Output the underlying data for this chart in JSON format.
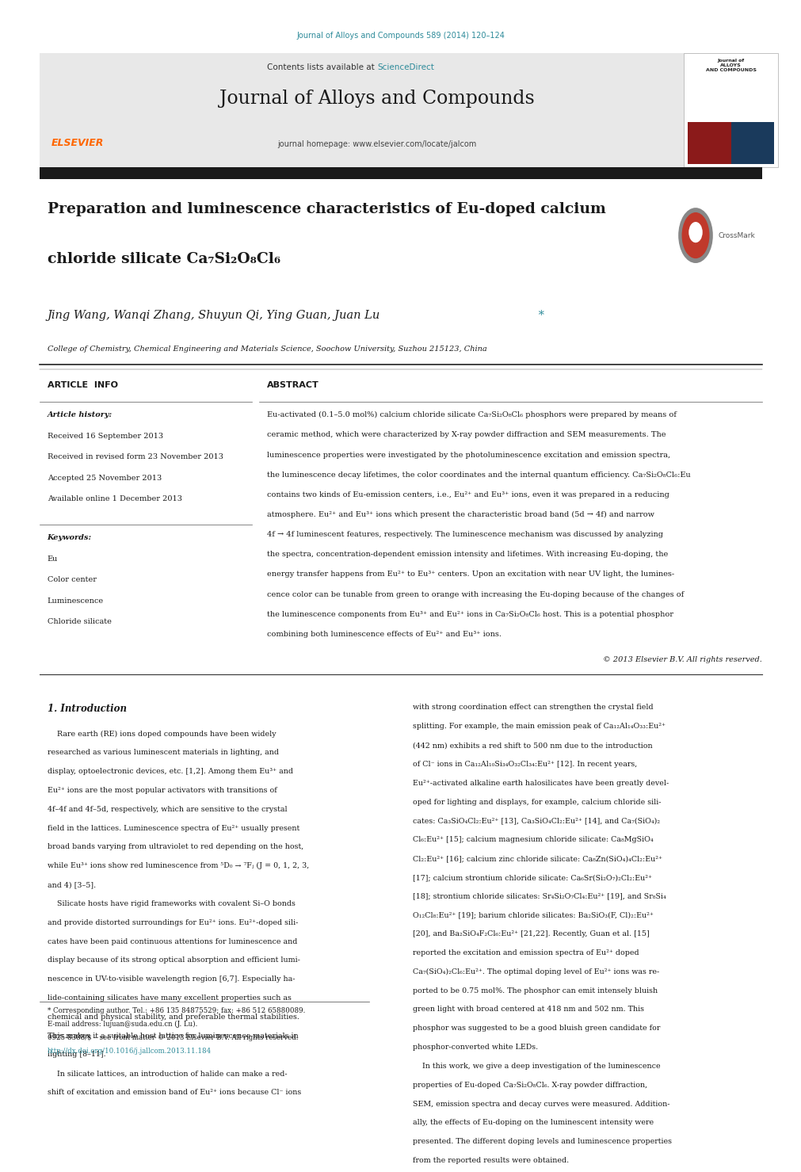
{
  "page_width": 9.92,
  "page_height": 13.23,
  "bg_color": "#ffffff",
  "journal_ref_text": "Journal of Alloys and Compounds 589 (2014) 120–124",
  "journal_ref_color": "#2e8b9a",
  "header_bg": "#e8e8e8",
  "header_text": "Contents lists available at",
  "sciencedirect_text": "ScienceDirect",
  "sciencedirect_color": "#2e8b9a",
  "journal_title": "Journal of Alloys and Compounds",
  "journal_homepage": "journal homepage: www.elsevier.com/locate/jalcom",
  "black_bar_color": "#1a1a1a",
  "paper_title_line1": "Preparation and luminescence characteristics of Eu-doped calcium",
  "paper_title_line2": "chloride silicate Ca₇Si₂O₈Cl₆",
  "authors": "Jing Wang, Wanqi Zhang, Shuyun Qi, Ying Guan, Juan Lu",
  "affiliation": "College of Chemistry, Chemical Engineering and Materials Science, Soochow University, Suzhou 215123, China",
  "article_info_label": "ARTICLE  INFO",
  "abstract_label": "ABSTRACT",
  "article_history_label": "Article history:",
  "received1": "Received 16 September 2013",
  "received2": "Received in revised form 23 November 2013",
  "accepted": "Accepted 25 November 2013",
  "available": "Available online 1 December 2013",
  "keywords_label": "Keywords:",
  "keyword1": "Eu",
  "keyword2": "Color center",
  "keyword3": "Luminescence",
  "keyword4": "Chloride silicate",
  "abstract_text": "Eu-activated (0.1–5.0 mol%) calcium chloride silicate Ca₇Si₂O₈Cl₆ phosphors were prepared by means of ceramic method, which were characterized by X-ray powder diffraction and SEM measurements. The luminescence properties were investigated by the photoluminescence excitation and emission spectra, the luminescence decay lifetimes, the color coordinates and the internal quantum efficiency. Ca₇Si₂O₈Cl₆:Eu contains two kinds of Eu-emission centers, i.e., Eu²⁺ and Eu³⁺ ions, even it was prepared in a reducing atmosphere. Eu²⁺ and Eu³⁺ ions which present the characteristic broad band (5d → 4f) and narrow 4f → 4f luminescent features, respectively. The luminescence mechanism was discussed by analyzing the spectra, concentration-dependent emission intensity and lifetimes. With increasing Eu-doping, the energy transfer happens from Eu²⁺ to Eu³⁺ centers. Upon an excitation with near UV light, the luminescence color can be tunable from green to orange with increasing the Eu-doping because of the changes of the luminescence components from Eu³⁺ and Eu²⁺ ions in Ca₇Si₂O₈Cl₆ host. This is a potential phosphor combining both luminescence effects of Eu²⁺ and Eu³⁺ ions.",
  "copyright": "© 2013 Elsevier B.V. All rights reserved.",
  "intro_heading": "1. Introduction",
  "intro_col1_text": "    Rare earth (RE) ions doped compounds have been widely researched as various luminescent materials in lighting, and display, optoelectronic devices, etc. [1,2]. Among them Eu³⁺ and Eu²⁺ ions are the most popular activators with transitions of 4f–4f and 4f–5d, respectively, which are sensitive to the crystal field in the lattices. Luminescence spectra of Eu²⁺ usually present broad bands varying from ultraviolet to red depending on the host, while Eu³⁺ ions show red luminescence from ⁵D₀ → ⁷Fⱼ (J = 0, 1, 2, 3, and 4) [3–5].\n    Silicate hosts have rigid frameworks with covalent Si–O bonds and provide distorted surroundings for Eu²⁺ ions. Eu²⁺-doped silicates have been paid continuous attentions for luminescence and display because of its strong optical absorption and efficient luminescence in UV-to-visible wavelength region [6,7]. Especially halide-containing silicates have many excellent properties such as chemical and physical stability, and preferable thermal stabilities. This makes it a suitable host lattice for luminescence materials in lighting [8–11].\n    In silicate lattices, an introduction of halide can make a red-shift of excitation and emission band of Eu²⁺ ions because Cl⁻ ions",
  "intro_col2_text": "with strong coordination effect can strengthen the crystal field splitting. For example, the main emission peak of Ca₁₂Al₁₄O₃₃:Eu²⁺ (442 nm) exhibits a red shift to 500 nm due to the introduction of Cl⁻ ions in Ca₁₂Al₁₀Si₃₄O₃₂Cl₃₄:Eu²⁺ [12]. In recent years, Eu²⁺-activated alkaline earth halosilicates have been greatly developed for lighting and displays, for example, calcium chloride silicates: Ca₃SiO₄Cl₂:Eu²⁺ [13], Ca₃SiO₄Cl₂:Eu²⁺ [14], and Ca₇(SiO₄)₂Cl₆:Eu²⁺ [15]; calcium magnesium chloride silicate: Ca₈MgSiO₄Cl₂:Eu²⁺ [16]; calcium zinc chloride silicate: Ca₈Zn(SiO₄)₄Cl₂:Eu²⁺ [17]; calcium strontium chloride silicate: Ca₆Sr(Si₂O₇)₂Cl₂:Eu²⁺ [18]; strontium chloride silicates: Sr₄Si₂O₇Cl₄:Eu²⁺ [19], and Sr₈Si₄O₁₂Cl₈:Eu²⁺ [19]; barium chloride silicates: Ba₂SiO₃(F, Cl)₂:Eu²⁺ [20], and Ba₂SiO₄F₂Cl₆:Eu²⁺ [21,22]. Recently, Guan et al. [15] reported the excitation and emission spectra of Eu²⁺ doped Ca₇(SiO₄)₂Cl₆:Eu²⁺. The optimal doping level of Eu²⁺ ions was reported to be 0.75 mol%. The phosphor can emit intensely bluish green light with broad centered at 418 nm and 502 nm. This phosphor was suggested to be a good bluish green candidate for phosphor-converted white LEDs.\n    In this work, we give a deep investigation of the luminescence properties of Eu-doped Ca₇Si₂O₈Cl₆. X-ray powder diffraction, SEM, emission spectra and decay curves were measured. Additionally, the effects of Eu-doping on the luminescent intensity were presented. The different doping levels and luminescence properties from the reported results were obtained.",
  "footnote1": "* Corresponding author. Tel.: +86 135 84875529; fax: +86 512 65880089.",
  "footnote2": "E-mail address: lujuan@suda.edu.cn (J. Lu).",
  "footnote3": "0925-8388/$ – see front matter © 2013 Elsevier B.V. All rights reserved.",
  "footnote4": "http://dx.doi.org/10.1016/j.jallcom.2013.11.184",
  "elsevier_color": "#FF6600",
  "separator_color": "#000000",
  "thin_separator_color": "#555555"
}
